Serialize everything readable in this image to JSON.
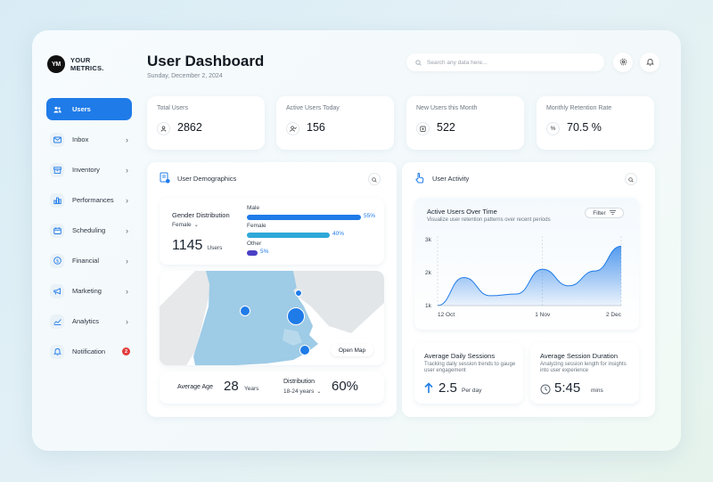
{
  "brand": {
    "mark": "YM",
    "line1": "YOUR",
    "line2": "METRICS."
  },
  "nav": [
    {
      "label": "Users",
      "icon": "users-icon",
      "active": true
    },
    {
      "label": "Inbox",
      "icon": "inbox-icon"
    },
    {
      "label": "Inventory",
      "icon": "inventory-icon"
    },
    {
      "label": "Performances",
      "icon": "performance-icon"
    },
    {
      "label": "Scheduling",
      "icon": "calendar-icon"
    },
    {
      "label": "Financial",
      "icon": "dollar-icon"
    },
    {
      "label": "Marketing",
      "icon": "megaphone-icon"
    },
    {
      "label": "Analytics",
      "icon": "analytics-icon"
    },
    {
      "label": "Notification",
      "icon": "bell-icon",
      "badge": "2"
    }
  ],
  "header": {
    "title": "User Dashboard",
    "date": "Sunday, December 2, 2024",
    "search_placeholder": "Search any data here..."
  },
  "stats": [
    {
      "label": "Total Users",
      "value": "2862",
      "icon": "user-icon"
    },
    {
      "label": "Active Users Today",
      "value": "156",
      "icon": "user-check-icon"
    },
    {
      "label": "New Users this Month",
      "value": "522",
      "icon": "calendar-add-icon"
    },
    {
      "label": "Monthly Retention Rate",
      "value": "70.5 %",
      "icon": "percent-icon"
    }
  ],
  "demographics": {
    "title": "User Demographics",
    "gender_title": "Gender Distribution",
    "filter": "Female",
    "users_count": "1145",
    "users_unit": "Users",
    "bars": [
      {
        "label": "Male",
        "pct": "55%",
        "value": 0.55,
        "color": "#1f7be8"
      },
      {
        "label": "Female",
        "pct": "40%",
        "value": 0.4,
        "color": "#2fa8d8"
      },
      {
        "label": "Other",
        "pct": "5%",
        "value": 0.05,
        "color": "#4a3fc4"
      }
    ],
    "open_map": "Open Map",
    "avg_age_label": "Average Age",
    "avg_age_value": "28",
    "avg_age_unit": "Years",
    "distribution_label": "Distribution",
    "distribution_range": "18-24 years",
    "distribution_value": "60%"
  },
  "activity": {
    "title": "User Activity",
    "chart_title": "Active Users Over Time",
    "chart_subtitle": "Visualize user retention patterns over recent periods",
    "filter_label": "Filter",
    "sessions_title": "Average Daily Sessions",
    "sessions_desc": "Tracking daily session trends to gauge user engagement",
    "sessions_value": "2.5",
    "sessions_unit": "Per day",
    "duration_title": "Average Session Duration",
    "duration_desc": "Analyzing session length for insights into user experience",
    "duration_value": "5:45",
    "duration_unit": "mins"
  },
  "chart_data": {
    "type": "area",
    "x": [
      "12 Oct",
      "",
      "",
      "",
      "1 Nov",
      "",
      "",
      "2 Dec"
    ],
    "xticks": [
      "12 Oct",
      "1 Nov",
      "2 Dec"
    ],
    "yticks": [
      "1k",
      "2k",
      "3k"
    ],
    "ylim": [
      1000,
      3000
    ],
    "series": [
      {
        "values": [
          1000,
          1850,
          1300,
          1350,
          2100,
          1600,
          2050,
          2800
        ]
      }
    ],
    "grid": true,
    "color": "#1f7be8"
  }
}
